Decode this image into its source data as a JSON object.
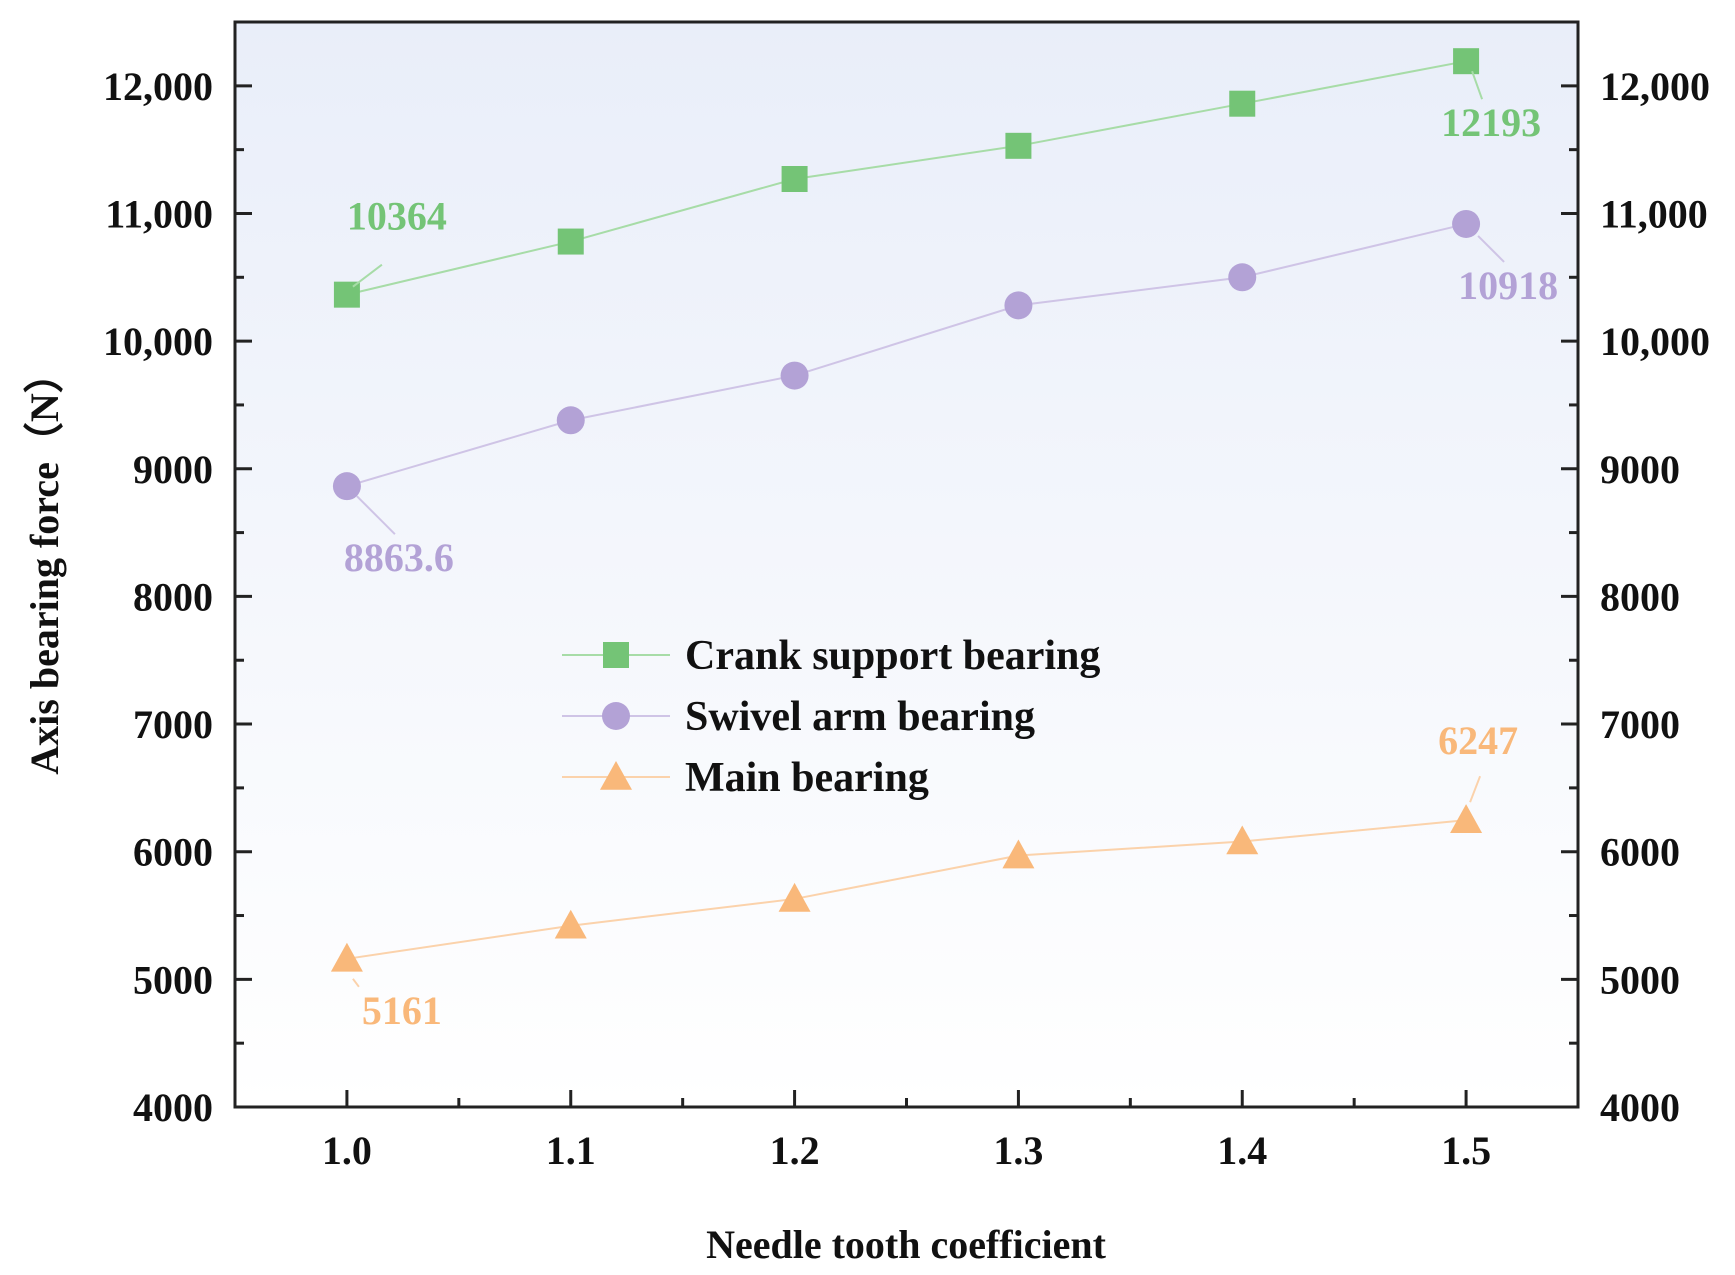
{
  "chart_data": {
    "type": "line",
    "xlabel": "Needle tooth coefficient",
    "ylabel": "Axis bearing force（N）",
    "xlim": [
      0.95,
      1.55
    ],
    "ylim": [
      4000,
      12500
    ],
    "x_ticks": [
      1.0,
      1.1,
      1.2,
      1.3,
      1.4,
      1.5
    ],
    "x_tick_labels": [
      "1.0",
      "1.1",
      "1.2",
      "1.3",
      "1.4",
      "1.5"
    ],
    "y_ticks": [
      4000,
      5000,
      6000,
      7000,
      8000,
      9000,
      10000,
      11000,
      12000
    ],
    "y_tick_labels": [
      "4000",
      "5000",
      "6000",
      "7000",
      "8000",
      "9000",
      "10,000",
      "11,000",
      "12,000"
    ],
    "right_axis_mirrors_left": true,
    "grid": false,
    "legend_position": "center",
    "background_gradient": [
      "#e9eef9",
      "#ffffff"
    ],
    "x": [
      1.0,
      1.1,
      1.2,
      1.3,
      1.4,
      1.5
    ],
    "series": [
      {
        "name": "Crank support bearing",
        "marker": "square",
        "color": "#74c476",
        "line_color": "#a7dca7",
        "values": [
          10364,
          10780,
          11270,
          11530,
          11860,
          12193
        ],
        "annotations": [
          {
            "index": 0,
            "text": "10364"
          },
          {
            "index": 5,
            "text": "12193"
          }
        ]
      },
      {
        "name": "Swivel arm bearing",
        "marker": "circle",
        "color": "#b3a2d6",
        "line_color": "#cfc4e6",
        "values": [
          8863.6,
          9380,
          9730,
          10280,
          10500,
          10918
        ],
        "annotations": [
          {
            "index": 0,
            "text": "8863.6"
          },
          {
            "index": 5,
            "text": "10918"
          }
        ]
      },
      {
        "name": "Main bearing",
        "marker": "triangle",
        "color": "#f9b87a",
        "line_color": "#fbd2ab",
        "values": [
          5161,
          5420,
          5630,
          5970,
          6080,
          6247
        ],
        "annotations": [
          {
            "index": 0,
            "text": "5161"
          },
          {
            "index": 5,
            "text": "6247"
          }
        ]
      }
    ]
  }
}
